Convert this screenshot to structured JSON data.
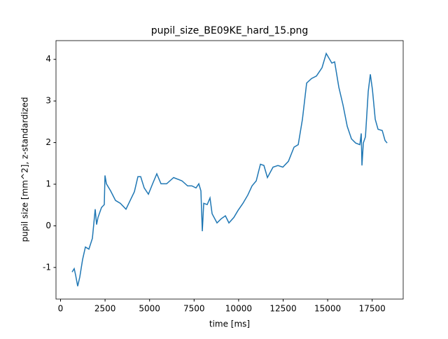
{
  "chart_data": {
    "type": "line",
    "title": "pupil_size_BE09KE_hard_15.png",
    "x_label": "time [ms]",
    "y_label": "pupil size [mm^2], z-standardized",
    "x": [
      649,
      767,
      845,
      963,
      1081,
      1238,
      1396,
      1592,
      1789,
      1946,
      2025,
      2103,
      2300,
      2457,
      2496,
      2575,
      2811,
      3086,
      3361,
      3675,
      3911,
      4147,
      4344,
      4501,
      4698,
      4934,
      5170,
      5405,
      5641,
      5956,
      6349,
      6821,
      7135,
      7371,
      7607,
      7764,
      7882,
      7961,
      8040,
      8236,
      8393,
      8511,
      8786,
      9022,
      9258,
      9455,
      9730,
      9966,
      10241,
      10516,
      10752,
      10988,
      11224,
      11420,
      11617,
      11932,
      12207,
      12482,
      12796,
      13111,
      13347,
      13583,
      13819,
      14094,
      14369,
      14683,
      14919,
      15234,
      15391,
      15627,
      15863,
      16099,
      16335,
      16571,
      16807,
      16885,
      16925,
      17003,
      17121,
      17278,
      17396,
      17514,
      17671,
      17828,
      18064,
      18221,
      18339
    ],
    "series": [
      {
        "color": "#1f77b4",
        "values": [
          -1.11,
          -1.03,
          -1.18,
          -1.45,
          -1.23,
          -0.81,
          -0.51,
          -0.56,
          -0.3,
          0.4,
          0.03,
          0.2,
          0.44,
          0.51,
          1.21,
          1.01,
          0.84,
          0.61,
          0.54,
          0.4,
          0.61,
          0.82,
          1.18,
          1.18,
          0.91,
          0.76,
          1.01,
          1.25,
          1.01,
          1.01,
          1.16,
          1.08,
          0.96,
          0.96,
          0.91,
          1.01,
          0.84,
          -0.13,
          0.54,
          0.51,
          0.67,
          0.29,
          0.07,
          0.17,
          0.24,
          0.07,
          0.2,
          0.37,
          0.54,
          0.74,
          0.96,
          1.08,
          1.48,
          1.45,
          1.16,
          1.41,
          1.45,
          1.41,
          1.55,
          1.89,
          1.95,
          2.56,
          3.43,
          3.54,
          3.6,
          3.8,
          4.14,
          3.91,
          3.94,
          3.33,
          2.9,
          2.39,
          2.09,
          1.99,
          1.95,
          2.22,
          1.45,
          1.99,
          2.14,
          3.23,
          3.64,
          3.27,
          2.56,
          2.32,
          2.29,
          2.05,
          1.99
        ]
      }
    ],
    "xlim": [
      -255,
      19241
    ],
    "ylim": [
      -1.76,
      4.45
    ],
    "xticks": [
      0,
      2500,
      5000,
      7500,
      10000,
      12500,
      15000,
      17500
    ],
    "yticks": [
      -1,
      0,
      1,
      2,
      3,
      4
    ]
  }
}
